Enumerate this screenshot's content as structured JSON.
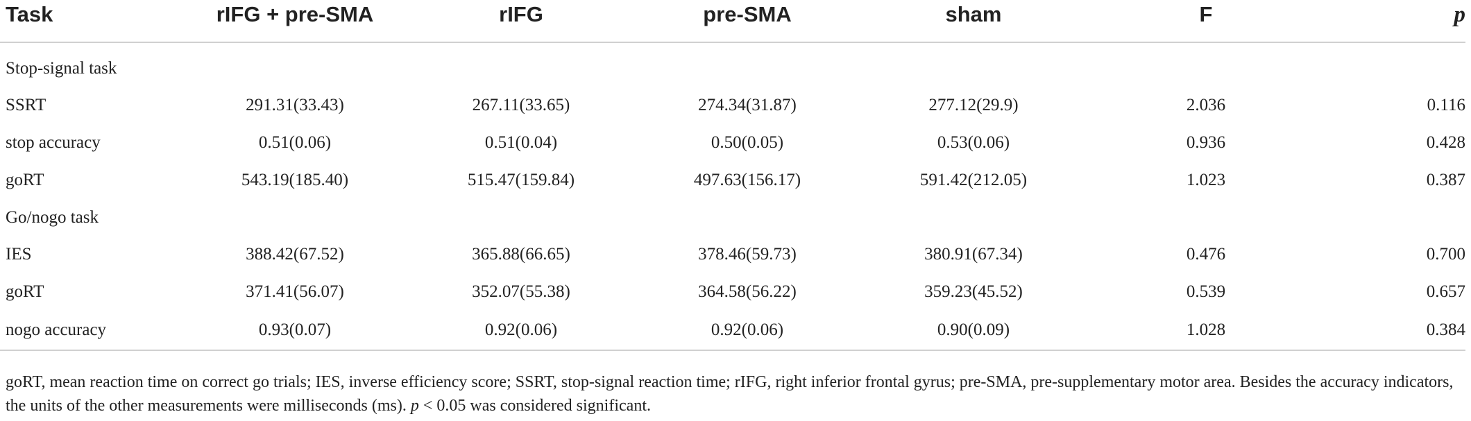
{
  "table": {
    "headers": {
      "task": "Task",
      "rifg_presma": "rIFG + pre-SMA",
      "rifg": "rIFG",
      "presma": "pre-SMA",
      "sham": "sham",
      "f": "F",
      "p": "p"
    },
    "sections": [
      {
        "title": "Stop-signal task",
        "rows": [
          {
            "label": "SSRT",
            "rifg_presma": "291.31(33.43)",
            "rifg": "267.11(33.65)",
            "presma": "274.34(31.87)",
            "sham": "277.12(29.9)",
            "f": "2.036",
            "p": "0.116"
          },
          {
            "label": "stop accuracy",
            "rifg_presma": "0.51(0.06)",
            "rifg": "0.51(0.04)",
            "presma": "0.50(0.05)",
            "sham": "0.53(0.06)",
            "f": "0.936",
            "p": "0.428"
          },
          {
            "label": "goRT",
            "rifg_presma": "543.19(185.40)",
            "rifg": "515.47(159.84)",
            "presma": "497.63(156.17)",
            "sham": "591.42(212.05)",
            "f": "1.023",
            "p": "0.387"
          }
        ]
      },
      {
        "title": "Go/nogo task",
        "rows": [
          {
            "label": "IES",
            "rifg_presma": "388.42(67.52)",
            "rifg": "365.88(66.65)",
            "presma": "378.46(59.73)",
            "sham": "380.91(67.34)",
            "f": "0.476",
            "p": "0.700"
          },
          {
            "label": "goRT",
            "rifg_presma": "371.41(56.07)",
            "rifg": "352.07(55.38)",
            "presma": "364.58(56.22)",
            "sham": "359.23(45.52)",
            "f": "0.539",
            "p": "0.657"
          },
          {
            "label": "nogo accuracy",
            "rifg_presma": "0.93(0.07)",
            "rifg": "0.92(0.06)",
            "presma": "0.92(0.06)",
            "sham": "0.90(0.09)",
            "f": "1.028",
            "p": "0.384"
          }
        ]
      }
    ]
  },
  "footnote": {
    "text_before_p": "goRT, mean reaction time on correct go trials; IES, inverse efficiency score; SSRT, stop-signal reaction time; rIFG, right inferior frontal gyrus; pre-SMA, pre-supplementary motor area. Besides the accuracy indicators, the units of the other measurements were milliseconds (ms). ",
    "p_symbol": "p",
    "text_after_p": " < 0.05 was considered significant."
  }
}
